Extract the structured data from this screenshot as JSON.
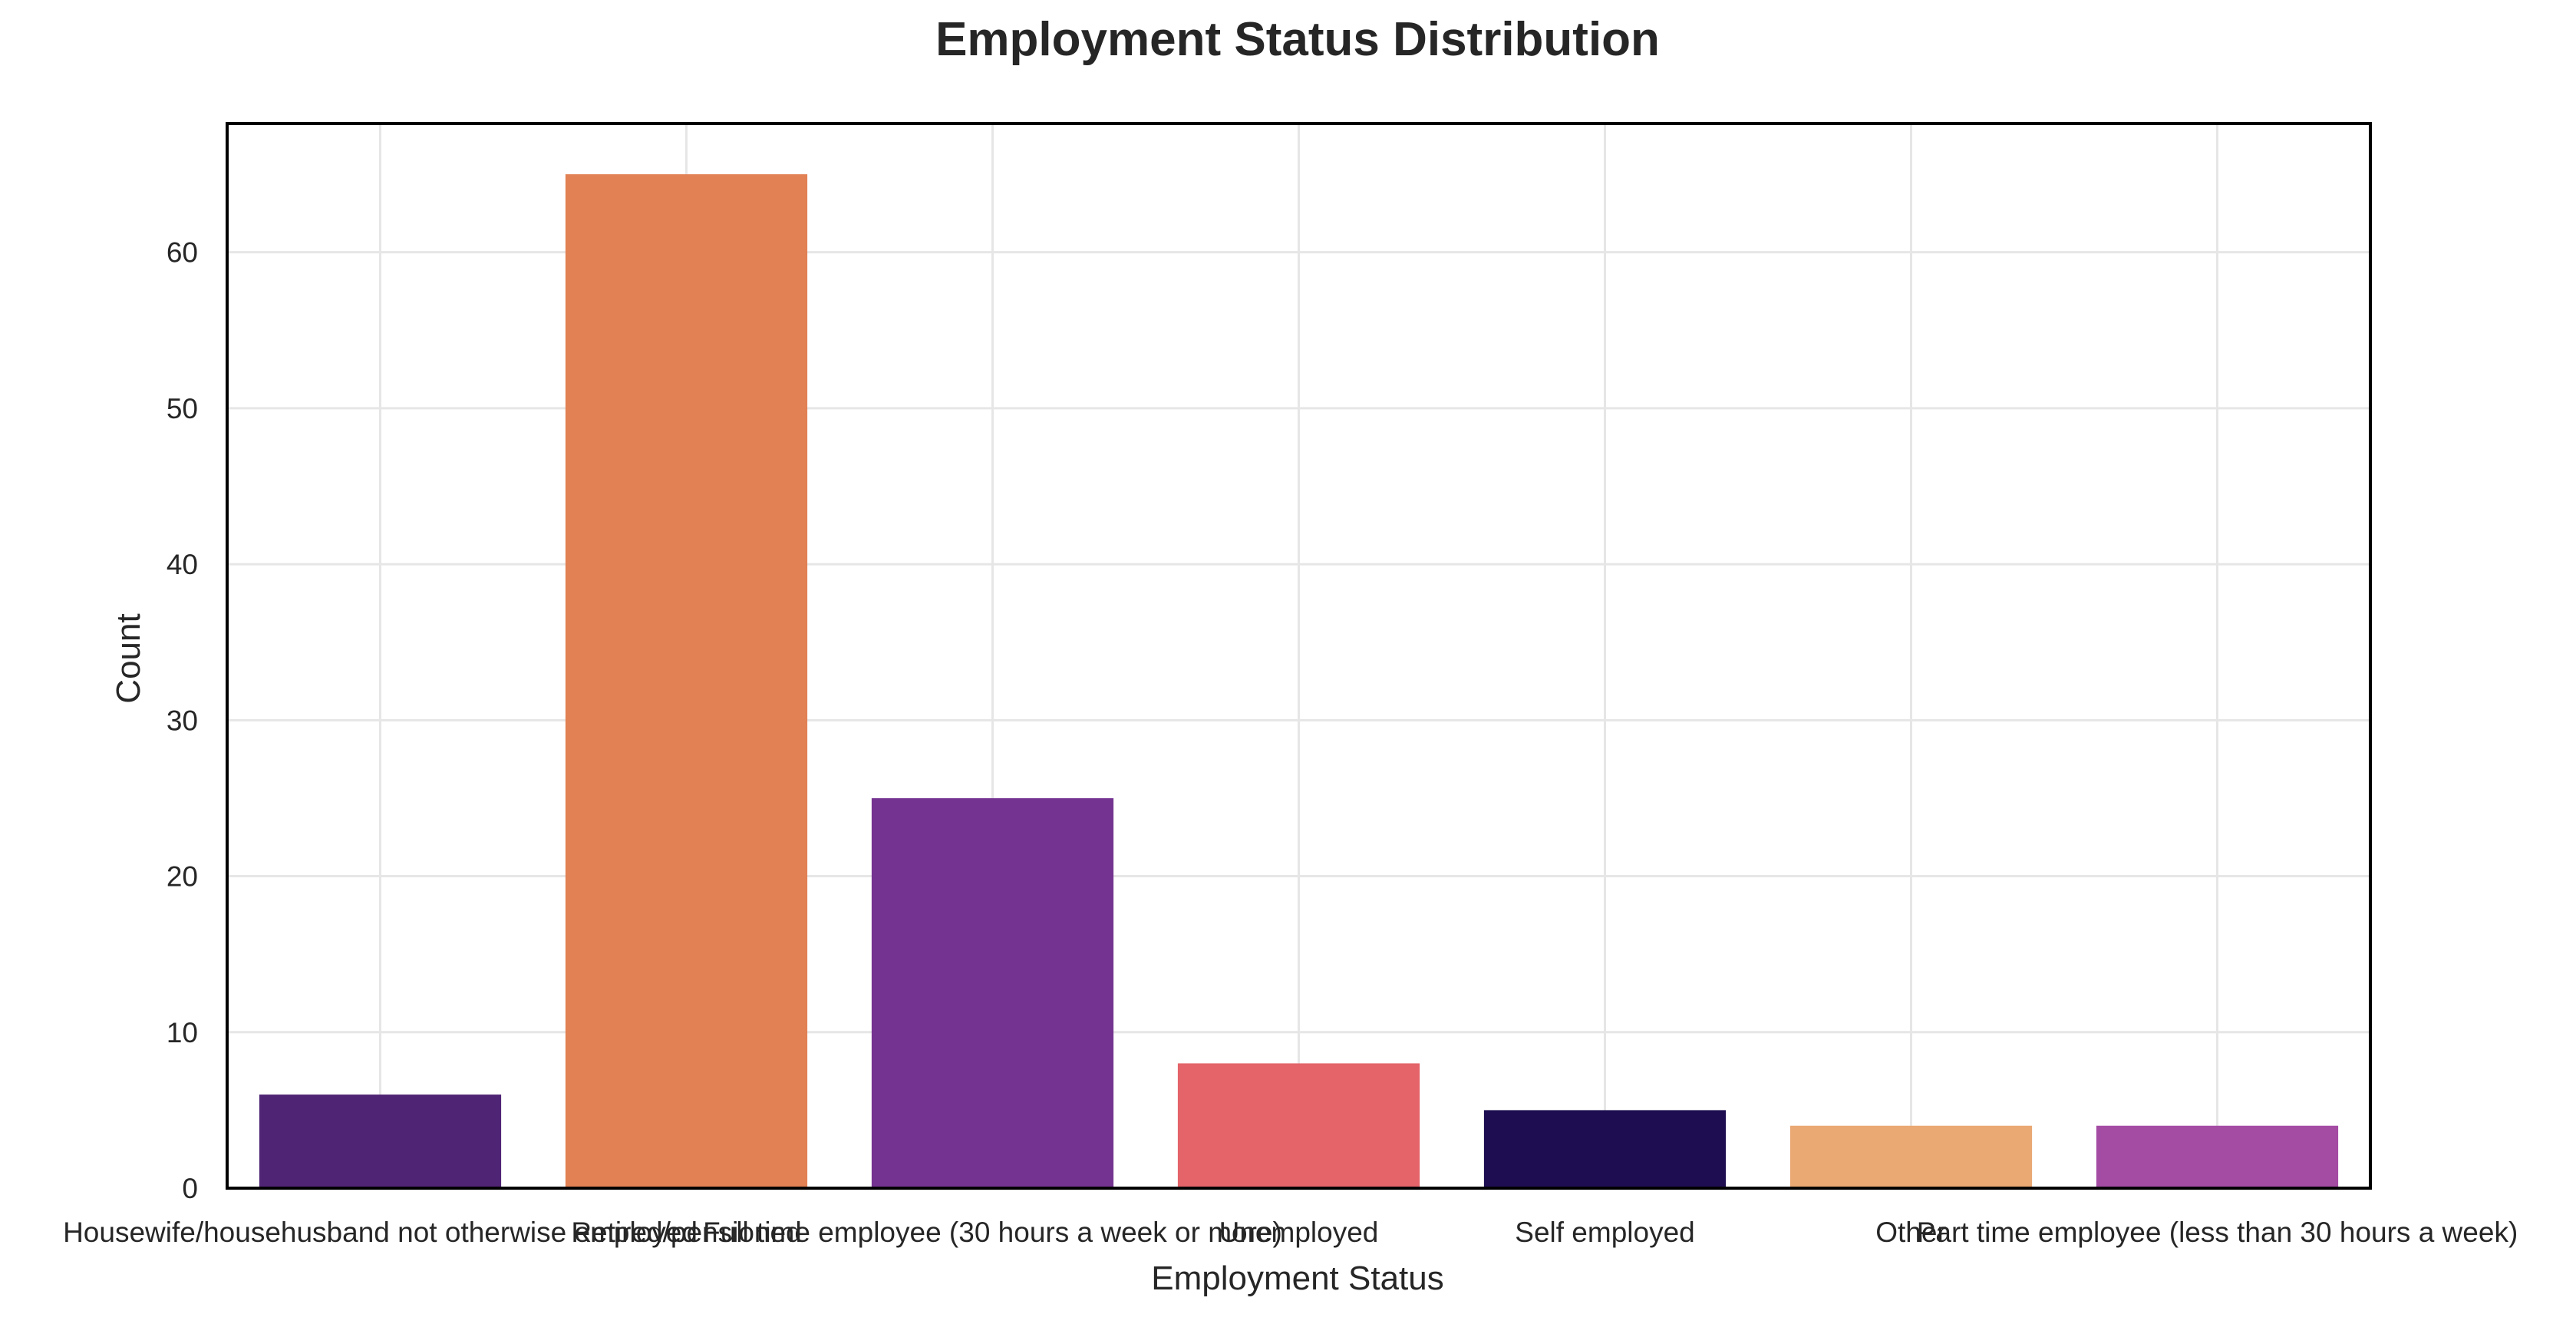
{
  "chart_data": {
    "type": "bar",
    "title": "Employment Status Distribution",
    "xlabel": "Employment Status",
    "ylabel": "Count",
    "categories": [
      "Housewife/househusband not otherwise employed",
      "Retired/pensioned",
      "Full time employee (30 hours a week or more)",
      "Unemployed",
      "Self employed",
      "Other",
      "Part time employee (less than 30 hours a week)"
    ],
    "values": [
      6,
      65,
      25,
      8,
      5,
      4,
      4
    ],
    "colors": [
      "#4f2475",
      "#e28154",
      "#743390",
      "#e4646a",
      "#1e0e51",
      "#eaa873",
      "#a44ba4"
    ],
    "ylim": [
      0,
      68.25
    ],
    "yticks": [
      0,
      10,
      20,
      30,
      40,
      50,
      60
    ],
    "grid": true,
    "legend": "none"
  }
}
